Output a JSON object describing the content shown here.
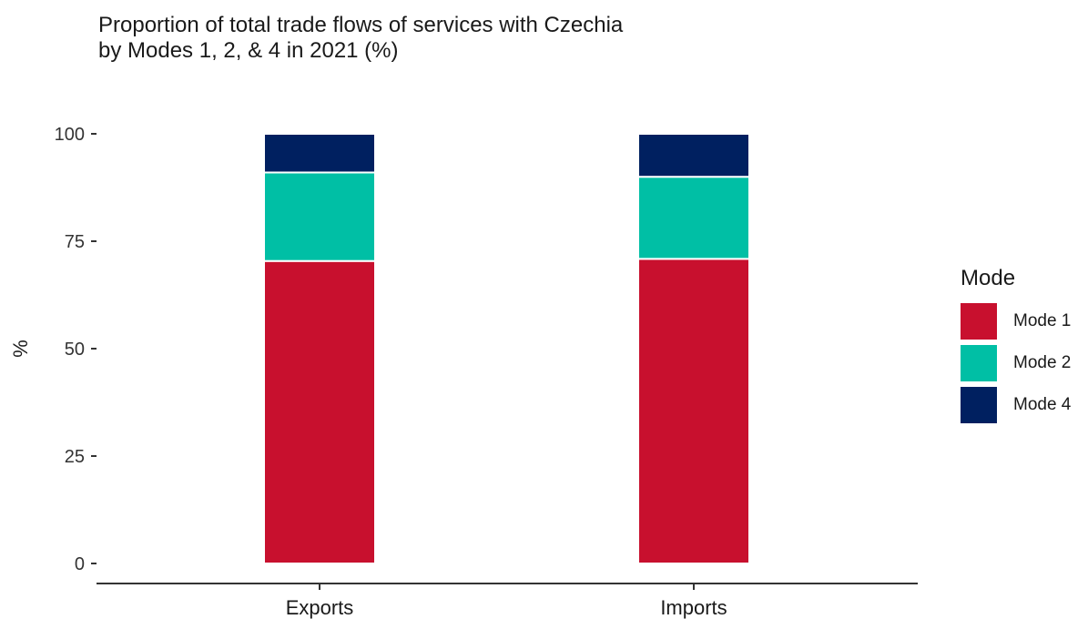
{
  "chart_data": {
    "type": "bar",
    "stacked": true,
    "title_lines": [
      "Proportion of total trade flows of services with Czechia",
      "by Modes 1, 2, & 4 in 2021 (%)"
    ],
    "xlabel": "",
    "ylabel": "%",
    "ylim": [
      0,
      100
    ],
    "yticks": [
      0,
      25,
      50,
      75,
      100
    ],
    "categories": [
      "Exports",
      "Imports"
    ],
    "series": [
      {
        "name": "Mode 1",
        "color": "#C8102E",
        "values": [
          70.4,
          70.9
        ]
      },
      {
        "name": "Mode 2",
        "color": "#00BFA5",
        "values": [
          20.6,
          19.1
        ]
      },
      {
        "name": "Mode 4",
        "color": "#002060",
        "values": [
          9.0,
          10.0
        ]
      }
    ],
    "legend": {
      "title": "Mode",
      "position": "right"
    },
    "grid": false
  }
}
